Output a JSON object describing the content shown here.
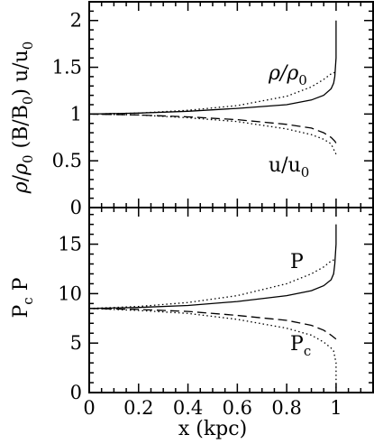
{
  "chart_data": [
    {
      "type": "line",
      "panel": "top",
      "ylabel": "ρ/ρ0 (B/B0) u/u0",
      "ylim": [
        0,
        2.2
      ],
      "yticks": [
        "0",
        "0.5",
        "1",
        "1.5",
        "2"
      ],
      "xlim": [
        0,
        1.15
      ],
      "grid": false,
      "annotations": [
        {
          "key": "rho",
          "base": "ρ/ρ",
          "sub": "0"
        },
        {
          "key": "u",
          "base": "u/u",
          "sub": "0"
        }
      ],
      "series": [
        {
          "style": "solid",
          "x": [
            0,
            0.2,
            0.4,
            0.6,
            0.8,
            0.9,
            0.95,
            0.98,
            0.99,
            0.995,
            1.0,
            1.0
          ],
          "y": [
            1.0,
            1.01,
            1.03,
            1.06,
            1.1,
            1.15,
            1.2,
            1.27,
            1.33,
            1.4,
            1.6,
            2.0
          ]
        },
        {
          "style": "dotted",
          "x": [
            0,
            0.2,
            0.4,
            0.6,
            0.8,
            0.9,
            0.95,
            0.98,
            1.0
          ],
          "y": [
            1.0,
            1.01,
            1.04,
            1.09,
            1.19,
            1.29,
            1.37,
            1.43,
            1.45
          ]
        },
        {
          "style": "dashed",
          "x": [
            0,
            0.2,
            0.4,
            0.6,
            0.8,
            0.9,
            0.95,
            0.98,
            0.995,
            1.0
          ],
          "y": [
            1.0,
            0.99,
            0.97,
            0.94,
            0.89,
            0.85,
            0.8,
            0.75,
            0.71,
            0.69
          ]
        },
        {
          "style": "dotted",
          "x": [
            0,
            0.2,
            0.4,
            0.6,
            0.8,
            0.9,
            0.95,
            0.98,
            1.0
          ],
          "y": [
            1.0,
            0.99,
            0.96,
            0.92,
            0.84,
            0.78,
            0.73,
            0.68,
            0.57
          ]
        }
      ]
    },
    {
      "type": "line",
      "panel": "bottom",
      "ylabel": "Pc P",
      "xlabel": "x (kpc)",
      "ylim": [
        0,
        18.7
      ],
      "xlim": [
        0,
        1.15
      ],
      "yticks": [
        "0",
        "5",
        "10",
        "15"
      ],
      "xticks": [
        "0",
        "0.2",
        "0.4",
        "0.6",
        "0.8",
        "1"
      ],
      "grid": false,
      "annotations": [
        {
          "key": "P",
          "base": "P",
          "sub": ""
        },
        {
          "key": "Pc",
          "base": "P",
          "sub": "c"
        }
      ],
      "series": [
        {
          "style": "solid",
          "x": [
            0,
            0.2,
            0.4,
            0.6,
            0.8,
            0.9,
            0.95,
            0.98,
            0.99,
            0.995,
            1.0,
            1.0
          ],
          "y": [
            8.5,
            8.6,
            8.8,
            9.2,
            9.8,
            10.3,
            10.8,
            11.4,
            12.0,
            13.0,
            15.0,
            17.0
          ]
        },
        {
          "style": "dotted",
          "x": [
            0,
            0.2,
            0.4,
            0.6,
            0.8,
            0.9,
            0.95,
            0.98,
            1.0
          ],
          "y": [
            8.5,
            8.7,
            9.1,
            9.8,
            11.0,
            12.0,
            12.7,
            13.3,
            13.5
          ]
        },
        {
          "style": "dashed",
          "x": [
            0,
            0.2,
            0.4,
            0.6,
            0.8,
            0.9,
            0.95,
            0.98,
            1.0
          ],
          "y": [
            8.5,
            8.4,
            8.2,
            7.8,
            7.3,
            6.8,
            6.3,
            5.8,
            5.4
          ]
        },
        {
          "style": "dotted",
          "x": [
            0,
            0.2,
            0.4,
            0.6,
            0.8,
            0.9,
            0.95,
            0.98,
            0.99,
            1.0,
            1.0
          ],
          "y": [
            8.5,
            8.3,
            8.0,
            7.4,
            6.5,
            5.8,
            5.1,
            4.5,
            4.2,
            3.0,
            0
          ]
        }
      ]
    }
  ]
}
